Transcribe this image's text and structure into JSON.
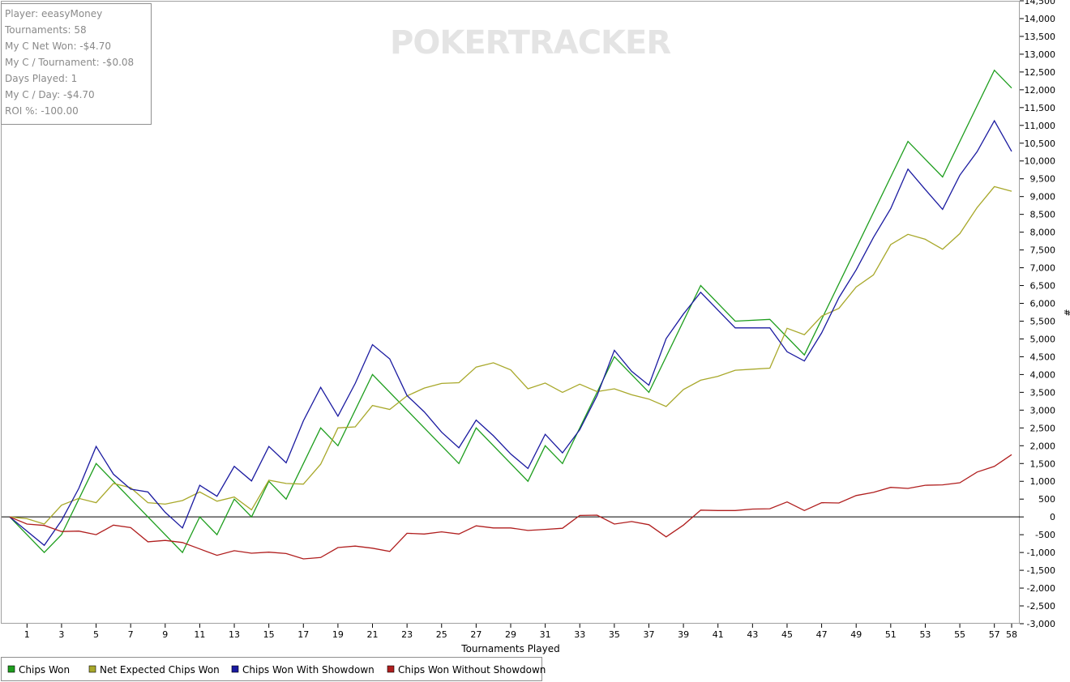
{
  "watermark": "POKERTRACKER",
  "stats": [
    "Player: eeasyMoney",
    "Tournaments: 58",
    "My C Net Won: -$4.70",
    "My C / Tournament: -$0.08",
    "Days Played: 1",
    "My C / Day: -$4.70",
    "ROI %: -100.00"
  ],
  "colors": {
    "chips_won": "#1e9e1e",
    "net_expected": "#a8a82a",
    "with_showdown": "#1a1aa0",
    "without_showdown": "#b01e1e",
    "zero_line": "#000000"
  },
  "chart_data": {
    "type": "line",
    "xlabel": "Tournaments Played",
    "ylabel": "#",
    "xlim": [
      0,
      58
    ],
    "ylim": [
      -3000,
      14500
    ],
    "y_ticks": [
      -3000,
      -2500,
      -2000,
      -1500,
      -1000,
      -500,
      0,
      500,
      1000,
      1500,
      2000,
      2500,
      3000,
      3500,
      4000,
      4500,
      5000,
      5500,
      6000,
      6500,
      7000,
      7500,
      8000,
      8500,
      9000,
      9500,
      10000,
      10500,
      11000,
      11500,
      12000,
      12500,
      13000,
      13500,
      14000,
      14500
    ],
    "y_tick_labels": [
      "-3,000",
      "-2,500",
      "-2,000",
      "-1,500",
      "-1,000",
      "-500",
      "0",
      "500",
      "1,000",
      "1,500",
      "2,000",
      "2,500",
      "3,000",
      "3,500",
      "4,000",
      "4,500",
      "5,000",
      "5,500",
      "6,000",
      "6,500",
      "7,000",
      "7,500",
      "8,000",
      "8,500",
      "9,000",
      "9,500",
      "10,000",
      "10,500",
      "11,000",
      "11,500",
      "12,000",
      "12,500",
      "13,000",
      "13,500",
      "14,000",
      "14,500"
    ],
    "x_ticks": [
      1,
      3,
      5,
      7,
      9,
      11,
      13,
      15,
      17,
      19,
      21,
      23,
      25,
      27,
      29,
      31,
      33,
      35,
      37,
      39,
      41,
      43,
      45,
      47,
      49,
      51,
      53,
      55,
      57,
      58
    ],
    "x_tick_labels": [
      "1",
      "3",
      "5",
      "7",
      "9",
      "11",
      "13",
      "15",
      "17",
      "19",
      "21",
      "23",
      "25",
      "27",
      "29",
      "31",
      "33",
      "35",
      "37",
      "39",
      "41",
      "43",
      "45",
      "47",
      "49",
      "51",
      "53",
      "55",
      "57",
      "58"
    ],
    "legend_position": "bottom-left",
    "grid": false,
    "series": [
      {
        "name": "Chips Won",
        "color_key": "chips_won",
        "x": [
          0,
          2,
          3,
          5,
          10,
          11,
          12,
          13,
          14,
          15,
          16,
          18,
          19,
          21,
          26,
          27,
          30,
          31,
          32,
          35,
          37,
          40,
          42,
          44,
          46,
          52,
          54,
          57,
          58
        ],
        "y": [
          0,
          -1000,
          -500,
          1500,
          -1000,
          0,
          -500,
          500,
          0,
          1000,
          500,
          2500,
          2000,
          4000,
          1500,
          2500,
          1000,
          2000,
          1500,
          4500,
          3500,
          6500,
          5500,
          5550,
          4550,
          10550,
          9550,
          12550,
          12050
        ]
      },
      {
        "name": "Net Expected Chips Won",
        "color_key": "net_expected",
        "x": [
          0,
          1,
          2,
          3,
          4,
          5,
          6,
          7,
          8,
          9,
          10,
          11,
          12,
          13,
          14,
          15,
          16,
          17,
          18,
          19,
          20,
          21,
          22,
          23,
          24,
          25,
          26,
          27,
          28,
          29,
          30,
          31,
          32,
          33,
          34,
          35,
          36,
          37,
          38,
          39,
          40,
          41,
          42,
          43,
          44,
          45,
          46,
          47,
          48,
          49,
          50,
          51,
          52,
          53,
          54,
          55,
          56,
          57,
          58
        ],
        "y": [
          0,
          -50,
          -200,
          330,
          520,
          400,
          940,
          820,
          400,
          360,
          460,
          700,
          440,
          560,
          200,
          1030,
          940,
          920,
          1480,
          2500,
          2530,
          3130,
          3020,
          3400,
          3620,
          3750,
          3770,
          4210,
          4330,
          4130,
          3600,
          3760,
          3500,
          3730,
          3520,
          3600,
          3430,
          3310,
          3100,
          3580,
          3840,
          3950,
          4120,
          4150,
          4180,
          5300,
          5120,
          5640,
          5860,
          6460,
          6800,
          7650,
          7940,
          7800,
          7520,
          7960,
          8690,
          9280,
          9150
        ]
      },
      {
        "name": "Chips Won With Showdown",
        "color_key": "with_showdown",
        "x": [
          0,
          2,
          3,
          4,
          5,
          6,
          7,
          8,
          9,
          10,
          11,
          12,
          13,
          14,
          15,
          16,
          17,
          18,
          19,
          20,
          21,
          22,
          23,
          24,
          25,
          26,
          27,
          28,
          29,
          30,
          31,
          32,
          33,
          34,
          35,
          36,
          37,
          38,
          39,
          40,
          41,
          42,
          43,
          44,
          45,
          46,
          47,
          48,
          49,
          50,
          51,
          52,
          53,
          54,
          55,
          56,
          57,
          58
        ],
        "y": [
          0,
          -800,
          -100,
          800,
          1980,
          1200,
          780,
          700,
          130,
          -310,
          890,
          580,
          1420,
          1010,
          1980,
          1520,
          2700,
          3640,
          2830,
          3750,
          4840,
          4440,
          3410,
          2950,
          2380,
          1940,
          2720,
          2280,
          1770,
          1360,
          2320,
          1800,
          2450,
          3410,
          4680,
          4090,
          3700,
          5010,
          5700,
          6310,
          5810,
          5310,
          5310,
          5310,
          4640,
          4380,
          5170,
          6160,
          6940,
          7850,
          8660,
          9770,
          9200,
          8640,
          9600,
          10260,
          11130,
          10270
        ]
      },
      {
        "name": "Chips Won Without Showdown",
        "color_key": "without_showdown",
        "x": [
          0,
          1,
          2,
          3,
          4,
          5,
          6,
          7,
          8,
          9,
          10,
          11,
          12,
          13,
          14,
          15,
          16,
          17,
          18,
          19,
          20,
          21,
          22,
          23,
          24,
          25,
          26,
          27,
          28,
          29,
          30,
          31,
          32,
          33,
          34,
          35,
          36,
          37,
          38,
          39,
          40,
          41,
          42,
          43,
          44,
          45,
          46,
          47,
          48,
          49,
          50,
          51,
          52,
          53,
          54,
          55,
          56,
          57,
          58
        ],
        "y": [
          0,
          -200,
          -240,
          -410,
          -400,
          -500,
          -230,
          -300,
          -700,
          -660,
          -720,
          -900,
          -1080,
          -950,
          -1020,
          -990,
          -1030,
          -1180,
          -1140,
          -860,
          -820,
          -880,
          -970,
          -460,
          -480,
          -420,
          -480,
          -250,
          -310,
          -310,
          -380,
          -350,
          -320,
          40,
          50,
          -200,
          -130,
          -220,
          -560,
          -230,
          190,
          180,
          180,
          220,
          230,
          420,
          180,
          400,
          390,
          600,
          690,
          830,
          800,
          890,
          900,
          960,
          1260,
          1420,
          1750
        ]
      }
    ]
  }
}
